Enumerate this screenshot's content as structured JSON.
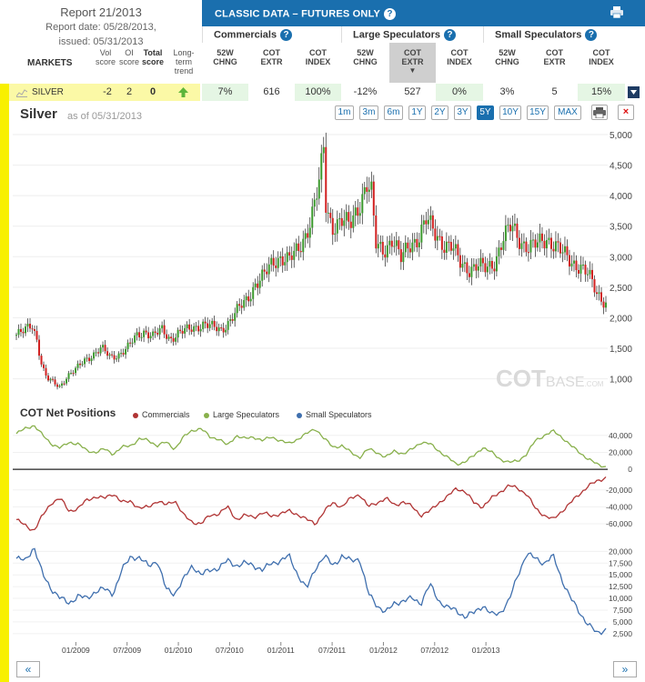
{
  "report": {
    "title": "Report 21/2013",
    "date_line": "Report date: 05/28/2013,",
    "issued_line": "issued: 05/31/2013"
  },
  "header": {
    "classic": "CLASSIC DATA – FUTURES ONLY",
    "groups": [
      "Commercials",
      "Large Speculators",
      "Small Speculators"
    ],
    "markets_label": "MARKETS",
    "cols": {
      "vol": [
        "Vol",
        "score"
      ],
      "oi": [
        "OI",
        "score"
      ],
      "total": [
        "Total",
        "score"
      ],
      "trend": [
        "Long-",
        "term",
        "trend"
      ],
      "sub": [
        [
          "52W",
          "CHNG"
        ],
        [
          "COT",
          "EXTR"
        ],
        [
          "COT",
          "INDEX"
        ]
      ]
    }
  },
  "row": {
    "name": "SILVER",
    "vol": "-2",
    "oi": "2",
    "total": "0",
    "values": [
      "7%",
      "616",
      "100%",
      "-12%",
      "527",
      "0%",
      "3%",
      "5",
      "15%"
    ]
  },
  "chart": {
    "title": "Silver",
    "asof": "as of 05/31/2013",
    "zoom": [
      "1m",
      "3m",
      "6m",
      "1Y",
      "2Y",
      "3Y",
      "5Y",
      "10Y",
      "15Y",
      "MAX"
    ],
    "active_zoom": "5Y",
    "watermark_cot": "COT",
    "watermark_base": "BASE",
    "watermark_com": ".COM",
    "cot_title": "COT Net Positions",
    "nav_prev": "«",
    "nav_next": "»"
  },
  "chart_data": [
    {
      "type": "candlestick",
      "title": "Silver",
      "ylim": [
        800,
        5000
      ],
      "yticks": [
        1000,
        1500,
        2000,
        2500,
        3000,
        3500,
        4000,
        4500,
        5000
      ],
      "x_range": [
        "06/2008",
        "05/2013"
      ],
      "x_ticks": [
        "01/2009",
        "07/2009",
        "01/2010",
        "07/2010",
        "01/2011",
        "07/2011",
        "01/2012",
        "07/2012",
        "01/2013"
      ],
      "close_series": [
        [
          0,
          1720
        ],
        [
          0.08,
          1780
        ],
        [
          0.15,
          1900
        ],
        [
          0.2,
          1650
        ],
        [
          0.25,
          1200
        ],
        [
          0.3,
          1000
        ],
        [
          0.35,
          950
        ],
        [
          0.42,
          870
        ],
        [
          0.5,
          1050
        ],
        [
          0.58,
          1150
        ],
        [
          0.66,
          1300
        ],
        [
          0.75,
          1400
        ],
        [
          0.83,
          1500
        ],
        [
          0.92,
          1350
        ],
        [
          1,
          1400
        ],
        [
          1.08,
          1500
        ],
        [
          1.17,
          1700
        ],
        [
          1.25,
          1780
        ],
        [
          1.33,
          1700
        ],
        [
          1.42,
          1800
        ],
        [
          1.5,
          1650
        ],
        [
          1.58,
          1750
        ],
        [
          1.67,
          1800
        ],
        [
          1.75,
          1850
        ],
        [
          1.83,
          1900
        ],
        [
          1.92,
          1840
        ],
        [
          2,
          1800
        ],
        [
          2.08,
          1950
        ],
        [
          2.17,
          2150
        ],
        [
          2.25,
          2300
        ],
        [
          2.33,
          2550
        ],
        [
          2.42,
          2700
        ],
        [
          2.5,
          2900
        ],
        [
          2.58,
          3000
        ],
        [
          2.66,
          2950
        ],
        [
          2.75,
          3100
        ],
        [
          2.83,
          3400
        ],
        [
          2.9,
          3800
        ],
        [
          2.96,
          4250
        ],
        [
          3.0,
          4800
        ],
        [
          3.02,
          3800
        ],
        [
          3.08,
          3500
        ],
        [
          3.17,
          3600
        ],
        [
          3.25,
          3500
        ],
        [
          3.33,
          3800
        ],
        [
          3.42,
          4200
        ],
        [
          3.47,
          4000
        ],
        [
          3.5,
          3200
        ],
        [
          3.58,
          3100
        ],
        [
          3.67,
          3300
        ],
        [
          3.75,
          2950
        ],
        [
          3.83,
          3200
        ],
        [
          3.92,
          3300
        ],
        [
          4,
          3600
        ],
        [
          4.08,
          3400
        ],
        [
          4.17,
          3200
        ],
        [
          4.25,
          3150
        ],
        [
          4.33,
          2900
        ],
        [
          4.42,
          2800
        ],
        [
          4.5,
          2850
        ],
        [
          4.58,
          2800
        ],
        [
          4.66,
          2900
        ],
        [
          4.75,
          3300
        ],
        [
          4.83,
          3500
        ],
        [
          4.92,
          3250
        ],
        [
          5,
          3150
        ],
        [
          5.08,
          3200
        ],
        [
          5.17,
          3300
        ],
        [
          5.25,
          3200
        ],
        [
          5.33,
          3050
        ],
        [
          5.42,
          2900
        ],
        [
          5.5,
          2850
        ],
        [
          5.58,
          2700
        ],
        [
          5.66,
          2400
        ],
        [
          5.75,
          2250
        ]
      ]
    },
    {
      "type": "line",
      "title": "COT Net Positions",
      "series": [
        {
          "name": "Commercials",
          "color": "#b03434",
          "yticks": [
            -20000,
            -40000,
            -60000
          ],
          "ylim": [
            -75000,
            -2000
          ],
          "values": [
            -55000,
            -62000,
            -68000,
            -50000,
            -35000,
            -30000,
            -45000,
            -42000,
            -32000,
            -28000,
            -30000,
            -24000,
            -35000,
            -33000,
            -42000,
            -40000,
            -33000,
            -38000,
            -32000,
            -50000,
            -58000,
            -60000,
            -50000,
            -48000,
            -40000,
            -55000,
            -50000,
            -52000,
            -47000,
            -51000,
            -48000,
            -45000,
            -49000,
            -55000,
            -60000,
            -45000,
            -35000,
            -40000,
            -30000,
            -25000,
            -40000,
            -35000,
            -30000,
            -38000,
            -34000,
            -40000,
            -50000,
            -45000,
            -35000,
            -28000,
            -18000,
            -22000,
            -35000,
            -40000,
            -30000,
            -22000,
            -15000,
            -18000,
            -25000,
            -42000,
            -50000,
            -55000,
            -45000,
            -35000,
            -25000,
            -15000,
            -10000,
            -5000
          ]
        },
        {
          "name": "Large Speculators",
          "color": "#88b04b",
          "yticks": [
            40000,
            20000,
            0
          ],
          "ylim": [
            -2000,
            58000
          ],
          "values": [
            42000,
            48000,
            52000,
            40000,
            30000,
            25000,
            32000,
            30000,
            22000,
            20000,
            24000,
            18000,
            26000,
            28000,
            36000,
            34000,
            28000,
            32000,
            24000,
            38000,
            46000,
            48000,
            38000,
            36000,
            28000,
            40000,
            36000,
            38000,
            34000,
            38000,
            34000,
            30000,
            36000,
            42000,
            48000,
            36000,
            26000,
            28000,
            20000,
            14000,
            24000,
            20000,
            14000,
            22000,
            18000,
            24000,
            32000,
            30000,
            22000,
            14000,
            6000,
            9000,
            16000,
            26000,
            20000,
            12000,
            8000,
            10000,
            18000,
            34000,
            40000,
            45000,
            38000,
            28000,
            20000,
            12000,
            6000,
            3000
          ]
        },
        {
          "name": "Small Speculators",
          "color": "#3f6fae",
          "yticks": [
            20000,
            17500,
            15000,
            12500,
            10000,
            7500,
            5000,
            2500
          ],
          "ylim": [
            1500,
            22000
          ],
          "values": [
            18500,
            18000,
            21000,
            15000,
            12000,
            10000,
            9000,
            10500,
            10000,
            11500,
            12000,
            11000,
            16000,
            19000,
            18500,
            17000,
            18000,
            12000,
            11000,
            14000,
            17000,
            15000,
            16000,
            16500,
            18000,
            17000,
            17500,
            17000,
            16000,
            17500,
            18000,
            19000,
            15000,
            12000,
            16500,
            19000,
            17000,
            19000,
            18000,
            18500,
            11000,
            8500,
            7000,
            9000,
            9500,
            10000,
            9000,
            13000,
            9500,
            8000,
            7500,
            6000,
            7000,
            8500,
            6500,
            7000,
            9500,
            15000,
            19500,
            18500,
            17500,
            19000,
            14000,
            10000,
            7000,
            4500,
            2500,
            3500
          ]
        }
      ]
    }
  ]
}
